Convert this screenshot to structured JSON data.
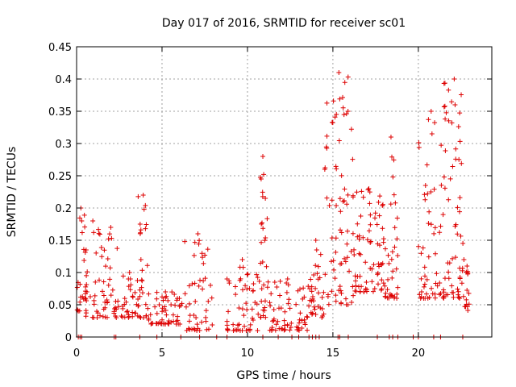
{
  "chart_data": {
    "type": "scatter",
    "title": "Day 017 of 2016, SRMTID for receiver sc01",
    "xlabel": "GPS time / hours",
    "ylabel": "SRMTID / TECUs",
    "xlim": [
      0,
      24.3
    ],
    "ylim": [
      0,
      0.45
    ],
    "x_ticks": [
      0,
      5,
      10,
      15,
      20
    ],
    "x_tick_labels": [
      "0",
      "5",
      "10",
      "15",
      "20"
    ],
    "y_ticks": [
      0,
      0.05,
      0.1,
      0.15,
      0.2,
      0.25,
      0.3,
      0.35,
      0.4,
      0.45
    ],
    "y_tick_labels": [
      "0",
      "0.05",
      "0.1",
      "0.15",
      "0.2",
      "0.25",
      "0.3",
      "0.35",
      "0.4",
      "0.45"
    ],
    "grid": true,
    "marker": "+",
    "marker_color": "#dd0000",
    "series": [
      {
        "name": "SRMTID",
        "envelope": [
          {
            "x": [
              0.0,
              0.5
            ],
            "ymin": 0.04,
            "ymax": 0.2,
            "density": 18
          },
          {
            "x": [
              0.5,
              1.4
            ],
            "ymin": 0.03,
            "ymax": 0.18,
            "density": 30
          },
          {
            "x": [
              1.4,
              2.6
            ],
            "ymin": 0.03,
            "ymax": 0.17,
            "density": 35
          },
          {
            "x": [
              2.6,
              3.6
            ],
            "ymin": 0.03,
            "ymax": 0.1,
            "density": 30
          },
          {
            "x": [
              3.6,
              4.2
            ],
            "ymin": 0.03,
            "ymax": 0.22,
            "density": 25
          },
          {
            "x": [
              4.2,
              6.2
            ],
            "ymin": 0.02,
            "ymax": 0.07,
            "density": 55
          },
          {
            "x": [
              6.2,
              8.0
            ],
            "ymin": 0.01,
            "ymax": 0.16,
            "density": 45
          },
          {
            "x": [
              8.8,
              10.6
            ],
            "ymin": 0.01,
            "ymax": 0.12,
            "density": 50
          },
          {
            "x": [
              10.6,
              11.2
            ],
            "ymin": 0.03,
            "ymax": 0.28,
            "density": 30
          },
          {
            "x": [
              11.2,
              13.5
            ],
            "ymin": 0.01,
            "ymax": 0.09,
            "density": 60
          },
          {
            "x": [
              13.5,
              14.5
            ],
            "ymin": 0.03,
            "ymax": 0.15,
            "density": 35
          },
          {
            "x": [
              14.5,
              16.2
            ],
            "ymin": 0.05,
            "ymax": 0.41,
            "density": 75
          },
          {
            "x": [
              16.2,
              18.0
            ],
            "ymin": 0.07,
            "ymax": 0.23,
            "density": 70
          },
          {
            "x": [
              18.0,
              18.8
            ],
            "ymin": 0.06,
            "ymax": 0.31,
            "density": 35
          },
          {
            "x": [
              20.0,
              21.5
            ],
            "ymin": 0.06,
            "ymax": 0.35,
            "density": 55
          },
          {
            "x": [
              21.5,
              22.7
            ],
            "ymin": 0.06,
            "ymax": 0.4,
            "density": 60
          },
          {
            "x": [
              22.7,
              23.0
            ],
            "ymin": 0.04,
            "ymax": 0.11,
            "density": 12
          }
        ],
        "zero_points_x": [
          0.1,
          0.2,
          0.3,
          2.2,
          2.3,
          3.7,
          4.7,
          6.1,
          7.2,
          8.2,
          8.8,
          10.9,
          11.8,
          12.6,
          13.0,
          13.6,
          13.8,
          14.0,
          14.2,
          15.3,
          15.4,
          15.9,
          17.6,
          18.3,
          18.5,
          18.8,
          19.7,
          20.0,
          20.9,
          21.3,
          22.6
        ]
      }
    ]
  }
}
